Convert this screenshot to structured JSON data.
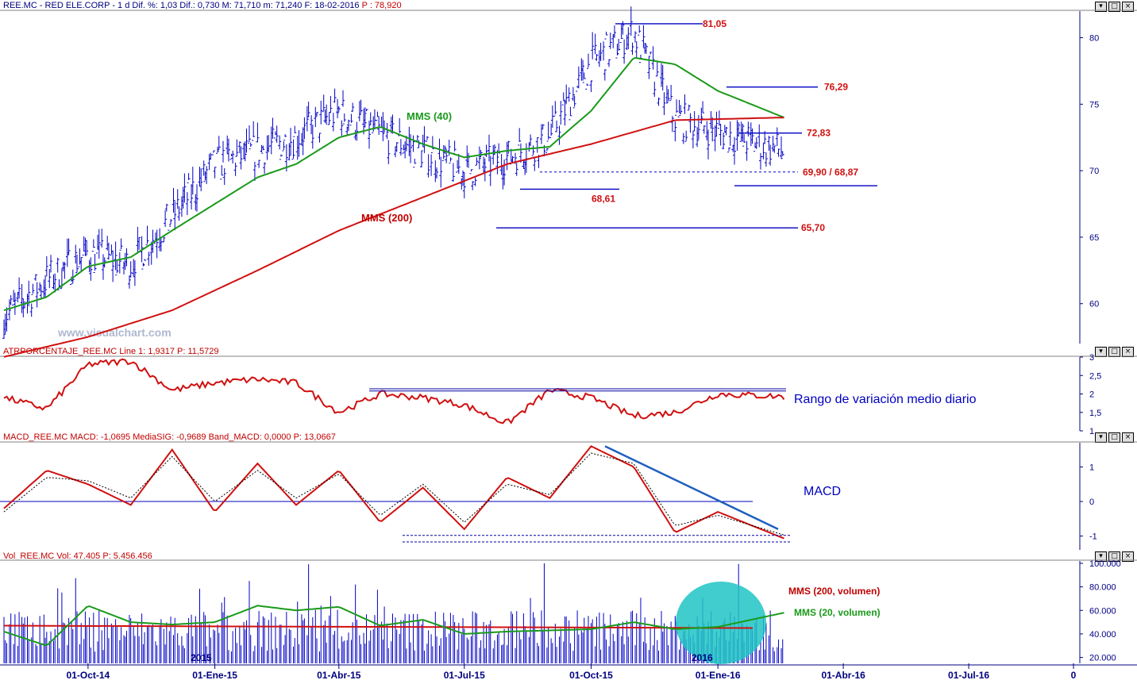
{
  "header": {
    "title_black": "REE.MC - RED ELE.CORP - 1 d Dif. %: 1,03 Dif.: 0,730 M: 71,710 m: 71,240 F: 18-02-2016",
    "title_red": "P : 78,920"
  },
  "panels": {
    "price": {
      "annotations": {
        "mms40": "MMS (40)",
        "mms200": "MMS (200)"
      }
    },
    "atr": {
      "title": "ATRPORCENTAJE_REE.MC Line 1: 1,9317 P: 11,5729",
      "note": "Rango de variación medio diario"
    },
    "macd": {
      "title": "MACD_REE.MC MACD: -1,0695 MediaSIG: -0,9689 Band_MACD: 0,0000 P: 13,0667",
      "note": "MACD"
    },
    "volume": {
      "title": "Vol_REE.MC Vol: 47.405 P: 5.456.456",
      "mms200": "MMS (200, volumen)",
      "mms20": "MMS (20, volumen)",
      "year_2015": "2015",
      "year_2016": "2016"
    }
  },
  "levels": [
    {
      "label": "81,05",
      "value": 81.05
    },
    {
      "label": "76,29",
      "value": 76.29
    },
    {
      "label": "72,83",
      "value": 72.83
    },
    {
      "label": "69,90 / 68,87",
      "value": 69.9
    },
    {
      "label": "68,61",
      "value": 68.61
    },
    {
      "label": "65,70",
      "value": 65.7
    }
  ],
  "watermark": "www.visualchart.com",
  "x_axis_labels": [
    "01-Oct-14",
    "01-Ene-15",
    "01-Abr-15",
    "01-Jul-15",
    "01-Oct-15",
    "01-Ene-16",
    "01-Abr-16",
    "01-Jul-16",
    "0"
  ],
  "chart_data": [
    {
      "type": "line",
      "title": "REE.MC - RED ELE.CORP - 1 d",
      "ylim": [
        57,
        82
      ],
      "yticks": [
        60,
        65,
        70,
        75,
        80
      ],
      "series": [
        {
          "name": "MMS (40)",
          "color": "#1a9a1a",
          "x": [
            "2014-08-01",
            "2014-09-01",
            "2014-10-01",
            "2014-11-01",
            "2014-12-01",
            "2015-01-01",
            "2015-02-01",
            "2015-03-01",
            "2015-04-01",
            "2015-05-01",
            "2015-06-01",
            "2015-07-01",
            "2015-08-01",
            "2015-09-01",
            "2015-10-01",
            "2015-11-01",
            "2015-12-01",
            "2016-01-01",
            "2016-02-18"
          ],
          "values": [
            59.5,
            60.5,
            62.8,
            63.5,
            65.5,
            67.5,
            69.5,
            70.5,
            72.5,
            73.3,
            72.0,
            71.0,
            71.5,
            71.8,
            74.5,
            78.5,
            78.0,
            76.0,
            74.0
          ]
        },
        {
          "name": "MMS (200)",
          "color": "#d01010",
          "x": [
            "2014-08-01",
            "2014-10-01",
            "2014-12-01",
            "2015-02-01",
            "2015-04-01",
            "2015-06-01",
            "2015-08-01",
            "2015-10-01",
            "2015-12-01",
            "2016-02-18"
          ],
          "values": [
            56.0,
            57.5,
            59.5,
            62.5,
            65.5,
            68.0,
            70.5,
            72.0,
            73.8,
            74.0
          ]
        }
      ]
    },
    {
      "type": "line",
      "title": "ATRPORCENTAJE_REE.MC",
      "ylim": [
        1,
        3
      ],
      "yticks": [
        1,
        1.5,
        2,
        2.5,
        3
      ],
      "series": [
        {
          "name": "Line 1",
          "color": "#d01010",
          "x": [
            "2014-08-01",
            "2014-09-01",
            "2014-10-01",
            "2014-11-01",
            "2014-12-01",
            "2015-01-01",
            "2015-02-01",
            "2015-03-01",
            "2015-04-01",
            "2015-05-01",
            "2015-06-01",
            "2015-07-01",
            "2015-08-01",
            "2015-09-01",
            "2015-10-01",
            "2015-11-01",
            "2015-12-01",
            "2016-01-01",
            "2016-02-18"
          ],
          "values": [
            1.9,
            1.6,
            2.8,
            2.9,
            2.1,
            2.3,
            2.4,
            2.3,
            1.5,
            2.0,
            1.9,
            1.7,
            1.2,
            2.1,
            1.9,
            1.4,
            1.5,
            2.0,
            1.93
          ]
        }
      ]
    },
    {
      "type": "line",
      "title": "MACD_REE.MC",
      "ylim": [
        -1.4,
        1.7
      ],
      "yticks": [
        -1,
        0,
        1
      ],
      "series": [
        {
          "name": "MACD",
          "color": "#d01010",
          "x": [
            "2014-08-01",
            "2014-09-01",
            "2014-10-01",
            "2014-11-01",
            "2014-12-01",
            "2015-01-01",
            "2015-02-01",
            "2015-03-01",
            "2015-04-01",
            "2015-05-01",
            "2015-06-01",
            "2015-07-01",
            "2015-08-01",
            "2015-09-01",
            "2015-10-01",
            "2015-11-01",
            "2015-12-01",
            "2016-01-01",
            "2016-02-18"
          ],
          "values": [
            -0.2,
            0.9,
            0.5,
            -0.1,
            1.5,
            -0.3,
            1.1,
            -0.1,
            0.9,
            -0.6,
            0.4,
            -0.8,
            0.7,
            0.1,
            1.6,
            1.0,
            -0.9,
            -0.3,
            -1.07
          ]
        },
        {
          "name": "MediaSIG",
          "color": "#000000",
          "x": [
            "2014-08-01",
            "2014-09-01",
            "2014-10-01",
            "2014-11-01",
            "2014-12-01",
            "2015-01-01",
            "2015-02-01",
            "2015-03-01",
            "2015-04-01",
            "2015-05-01",
            "2015-06-01",
            "2015-07-01",
            "2015-08-01",
            "2015-09-01",
            "2015-10-01",
            "2015-11-01",
            "2015-12-01",
            "2016-01-01",
            "2016-02-18"
          ],
          "values": [
            -0.3,
            0.7,
            0.6,
            0.1,
            1.3,
            0.0,
            0.9,
            0.1,
            0.8,
            -0.4,
            0.5,
            -0.6,
            0.5,
            0.2,
            1.4,
            1.1,
            -0.7,
            -0.4,
            -0.97
          ]
        }
      ]
    },
    {
      "type": "bar",
      "title": "Vol_REE.MC",
      "ylim": [
        15000,
        102000
      ],
      "yticks": [
        20000,
        40000,
        60000,
        80000,
        100000
      ],
      "ytick_labels": [
        "20.000",
        "40.000",
        "60.000",
        "80.000",
        "100.000"
      ],
      "series": [
        {
          "name": "MMS (200, volumen)",
          "color": "#d01010",
          "values_approx": 47000
        },
        {
          "name": "MMS (20, volumen)",
          "color": "#1a9a1a",
          "x": [
            "2014-08-01",
            "2014-09-01",
            "2014-10-01",
            "2014-11-01",
            "2014-12-01",
            "2015-01-01",
            "2015-02-01",
            "2015-03-01",
            "2015-04-01",
            "2015-05-01",
            "2015-06-01",
            "2015-07-01",
            "2015-08-01",
            "2015-09-01",
            "2015-10-01",
            "2015-11-01",
            "2015-12-01",
            "2016-01-01",
            "2016-02-18"
          ],
          "values": [
            42000,
            30000,
            64000,
            50000,
            48000,
            50000,
            64000,
            60000,
            63000,
            47000,
            52000,
            40000,
            42000,
            43000,
            44000,
            50000,
            44000,
            46000,
            58000
          ]
        }
      ]
    }
  ]
}
